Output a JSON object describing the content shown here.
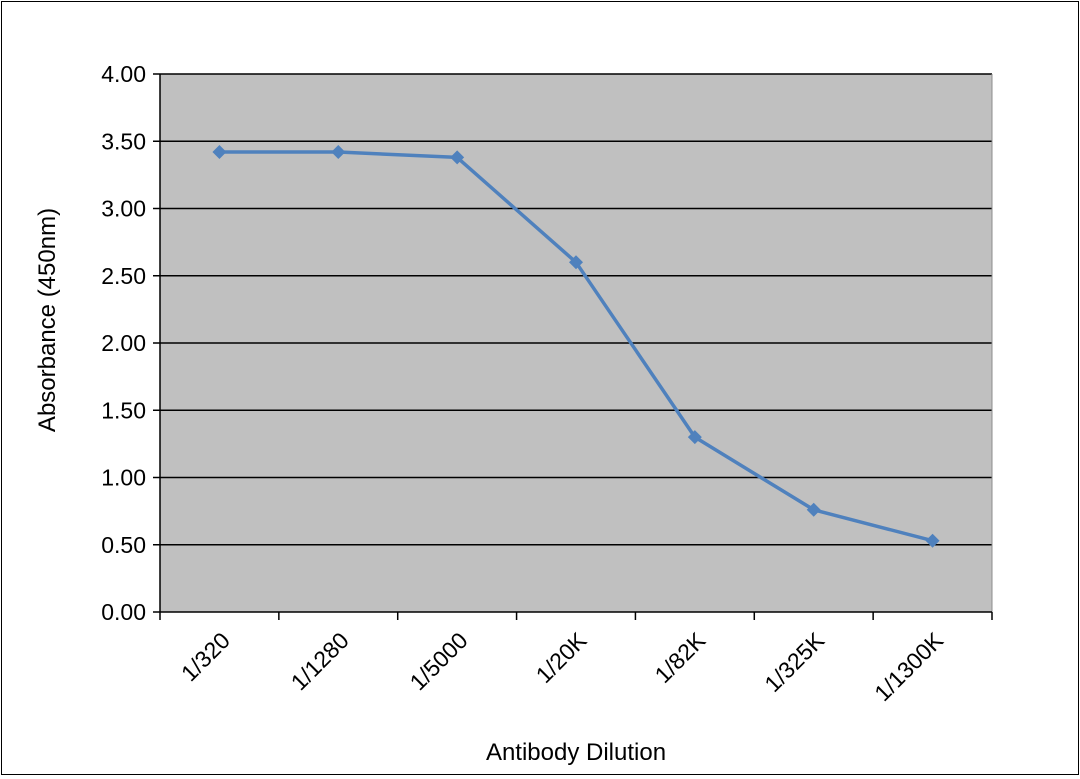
{
  "chart_data": {
    "type": "line",
    "title": "",
    "xlabel": "Antibody Dilution",
    "ylabel": "Absorbance (450nm)",
    "categories": [
      "1/320",
      "1/1280",
      "1/5000",
      "1/20K",
      "1/82K",
      "1/325K",
      "1/1300K"
    ],
    "series": [
      {
        "values": [
          3.42,
          3.42,
          3.38,
          2.6,
          1.3,
          0.76,
          0.53
        ]
      }
    ],
    "ylim": [
      0,
      4
    ],
    "yticks": [
      "0.00",
      "0.50",
      "1.00",
      "1.50",
      "2.00",
      "2.50",
      "3.00",
      "3.50",
      "4.00"
    ],
    "grid": true,
    "legend": "none",
    "colors": {
      "plot_background": "#c0c0c0",
      "series": "#4f81bd",
      "gridline": "#000000"
    }
  }
}
